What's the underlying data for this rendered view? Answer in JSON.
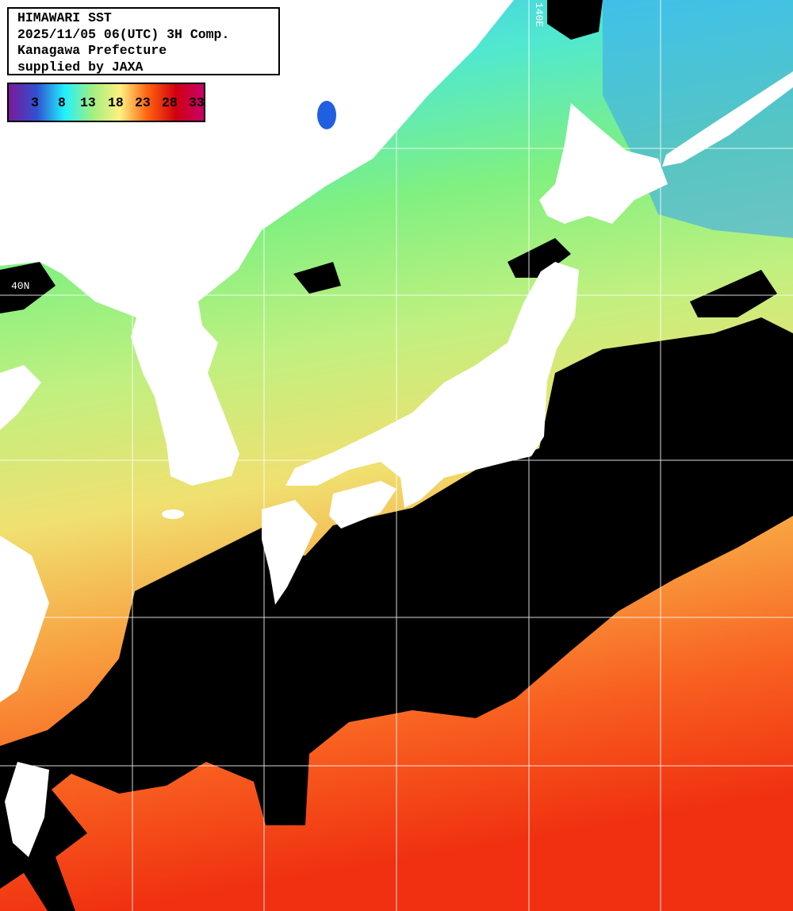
{
  "header": {
    "lines": [
      "HIMAWARI SST",
      "2025/11/05 06(UTC) 3H Comp.",
      "Kanagawa Prefecture",
      "supplied by JAXA"
    ]
  },
  "legend": {
    "ticks": [
      "3",
      "8",
      "13",
      "18",
      "23",
      "28",
      "33"
    ],
    "colors": [
      "#7a1a9a",
      "#3050d0",
      "#20f0ff",
      "#a0f080",
      "#fff080",
      "#ff6010",
      "#d00010",
      "#c8006a"
    ]
  },
  "grid": {
    "lon_label": "140E",
    "lat_label": "40N"
  },
  "map": {
    "land_color": "#ffffff",
    "cloud_color": "#000000",
    "sst_gradient": [
      "#40c0f0",
      "#50e8d0",
      "#80f080",
      "#c0f080",
      "#f0e070",
      "#f8a040",
      "#f86020",
      "#f03010"
    ]
  }
}
